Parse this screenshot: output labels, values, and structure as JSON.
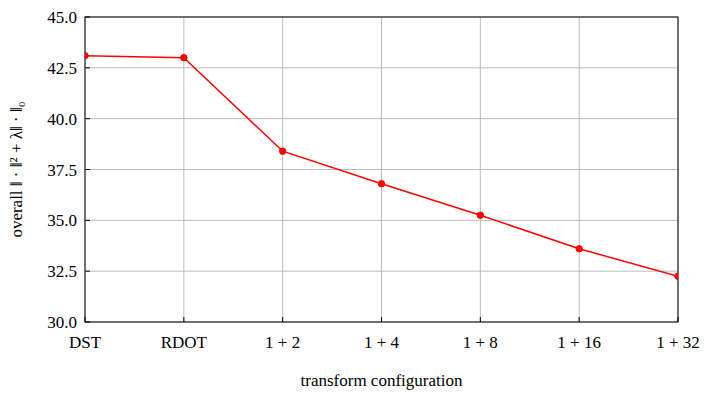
{
  "chart_data": {
    "type": "line",
    "x_label": "transform configuration",
    "y_label": "overall ‖ · ‖² + λ‖ · ‖₀",
    "categories": [
      "DST",
      "RDOT",
      "1 + 2",
      "1 + 4",
      "1 + 8",
      "1 + 16",
      "1 + 32"
    ],
    "values": [
      43.1,
      43.0,
      38.4,
      36.8,
      35.25,
      33.6,
      32.25
    ],
    "color": "#ff0000",
    "marker": "circle",
    "ylim": [
      30,
      45
    ],
    "yticks": [
      {
        "value": 30,
        "label": "30.0"
      },
      {
        "value": 32.5,
        "label": "32.5"
      },
      {
        "value": 35,
        "label": "35.0"
      },
      {
        "value": 37.5,
        "label": "37.5"
      },
      {
        "value": 40,
        "label": "40.0"
      },
      {
        "value": 42.5,
        "label": "42.5"
      },
      {
        "value": 45,
        "label": "45.0"
      }
    ],
    "grid": true
  }
}
